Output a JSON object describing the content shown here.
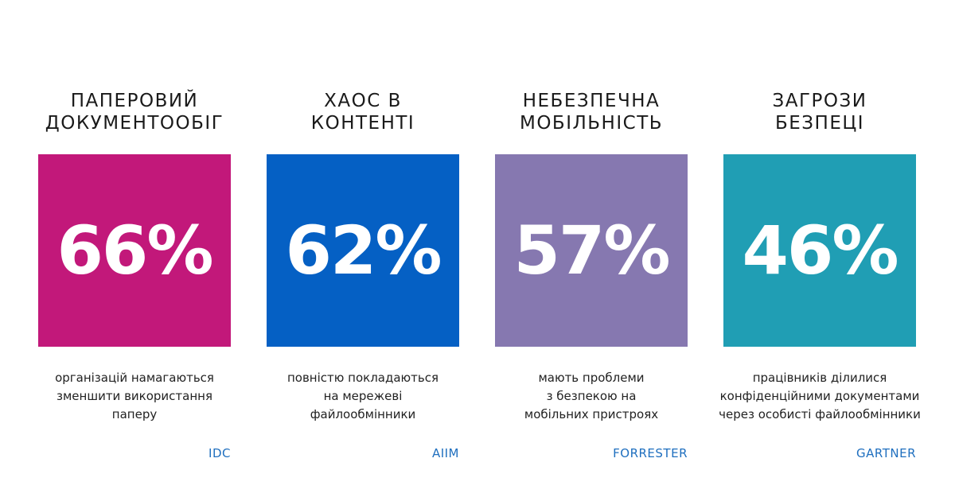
{
  "stats": [
    {
      "title_lines": [
        "ПАПЕРОВИЙ",
        "ДОКУМЕНТООБІГ"
      ],
      "value": "66%",
      "description_lines": [
        "організацій намагаються",
        "зменшити використання",
        "паперу"
      ],
      "source": "IDC",
      "color": "#c2187a"
    },
    {
      "title_lines": [
        "ХАОС В",
        "КОНТЕНТІ"
      ],
      "value": "62%",
      "description_lines": [
        "повністю покладаються",
        "на мережеві",
        "файлообмінники"
      ],
      "source": "AIIM",
      "color": "#0560c4"
    },
    {
      "title_lines": [
        "НЕБЕЗПЕЧНА",
        "МОБІЛЬНІСТЬ"
      ],
      "value": "57%",
      "description_lines": [
        "мають проблеми",
        "з безпекою на",
        "мобільних пристроях"
      ],
      "source": "FORRESTER",
      "color": "#8678b0"
    },
    {
      "title_lines": [
        "ЗАГРОЗИ",
        "БЕЗПЕЦІ"
      ],
      "value": "46%",
      "description_lines": [
        "працівників ділилися",
        "конфіденційними документами",
        "через особисті файлообмінники"
      ],
      "source": "GARTNER",
      "color": "#209eb4"
    }
  ],
  "source_color": "#1f6fbf",
  "title_color": "#1a1a1a"
}
